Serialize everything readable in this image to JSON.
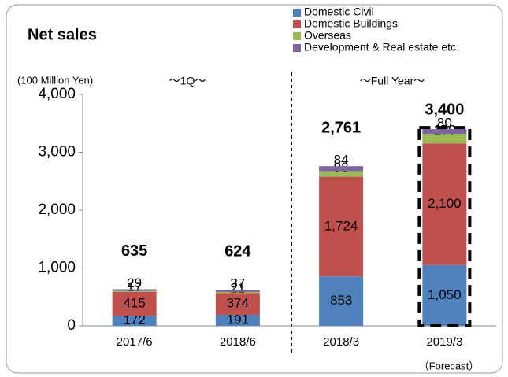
{
  "chart_data": {
    "type": "stacked_bar",
    "title": "Net sales",
    "y_label": "(100 Million Yen)",
    "annotations": [
      "～1Q～",
      "～Full Year～",
      "（Forecast）"
    ],
    "categories": [
      "2017/6",
      "2018/6",
      "2018/3",
      "2019/3"
    ],
    "series": [
      {
        "name": "Domestic Civil",
        "color": "#4f81bd",
        "values": [
          172,
          191,
          853,
          1050
        ],
        "value_labels": [
          "172",
          "191",
          "853",
          "1,050"
        ]
      },
      {
        "name": "Domestic Buildings",
        "color": "#c0504d",
        "values": [
          415,
          374,
          1724,
          2100
        ],
        "value_labels": [
          "415",
          "374",
          "1,724",
          "2,100"
        ]
      },
      {
        "name": "Overseas",
        "color": "#9bbb59",
        "values": [
          17,
          21,
          98,
          170
        ]
      },
      {
        "name": "Development & Real estate etc.",
        "color": "#8064a2",
        "values": [
          29,
          37,
          84,
          80
        ]
      }
    ],
    "totals": {
      "values": [
        635,
        624,
        2761,
        3400
      ],
      "value_labels": [
        "635",
        "624",
        "2,761",
        "3,400"
      ]
    },
    "ylim": [
      0,
      4000
    ],
    "yticks": [
      0,
      {
        "value": 1000,
        "label": "1,000"
      },
      {
        "value": 2000,
        "label": "2,000"
      },
      {
        "value": 3000,
        "label": "3,000"
      },
      {
        "value": 4000,
        "label": "4,000"
      }
    ],
    "grid": false
  }
}
